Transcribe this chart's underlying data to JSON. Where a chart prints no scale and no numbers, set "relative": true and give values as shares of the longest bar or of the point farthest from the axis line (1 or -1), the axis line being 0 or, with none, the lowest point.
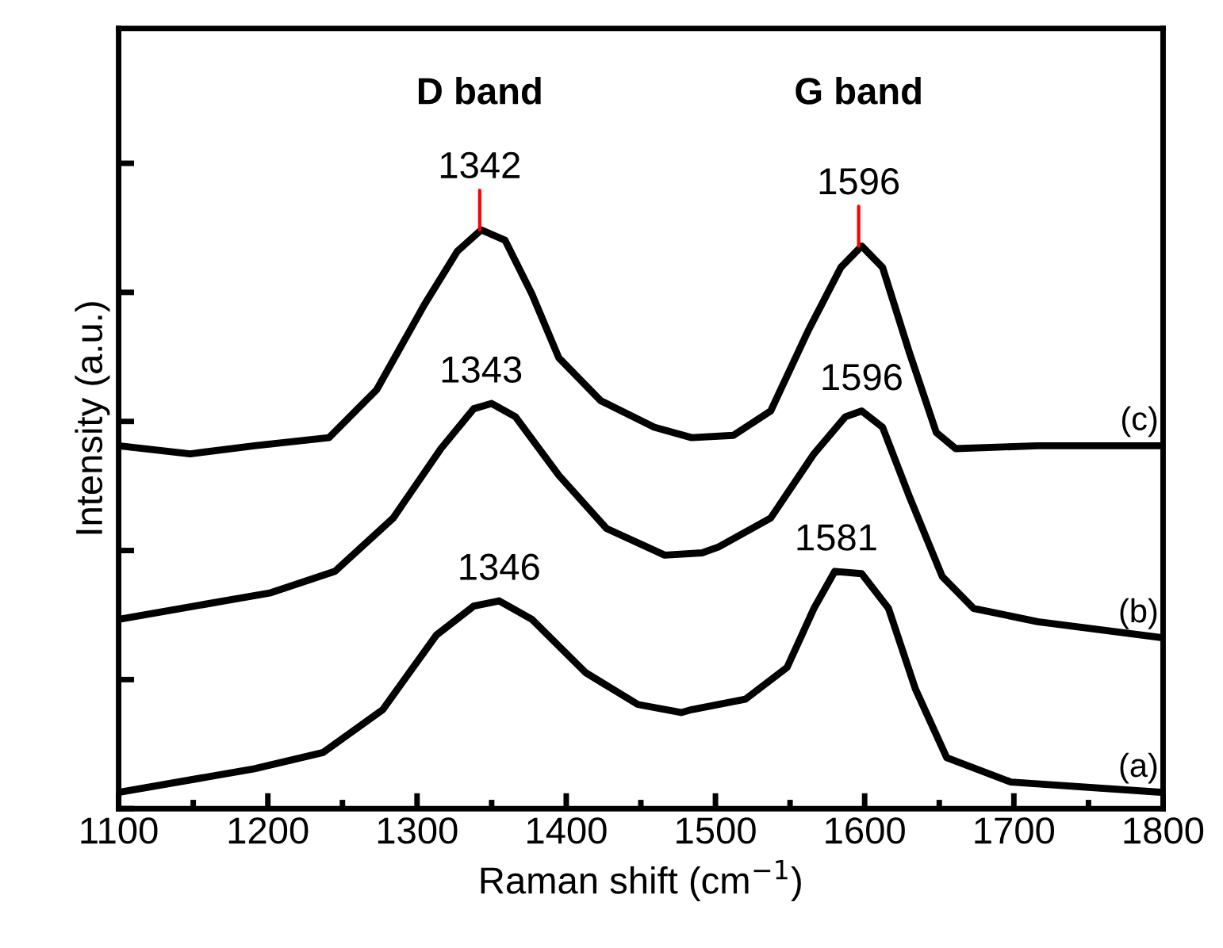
{
  "chart_data": {
    "type": "line",
    "xlabel": "Raman shift (cm$^{−1}$)",
    "ylabel": "Intensity (a.u.)",
    "relative": true,
    "xlim": [
      1100,
      1800
    ],
    "xticks": [
      1100,
      1200,
      1300,
      1400,
      1500,
      1600,
      1700,
      1800
    ],
    "tick_labels": "x",
    "grid": false,
    "legend": false,
    "series": [
      {
        "name": "(c)",
        "color": "#000000",
        "x": [
          1100,
          1148,
          1191,
          1241,
          1273,
          1305,
          1327,
          1343,
          1359,
          1377,
          1395,
          1423,
          1459,
          1484,
          1512,
          1537,
          1562,
          1584,
          1598,
          1612,
          1630,
          1648,
          1661,
          1716,
          1800
        ],
        "values": [
          0.627,
          0.613,
          0.627,
          0.641,
          0.724,
          0.871,
          0.963,
          1.0,
          0.982,
          0.889,
          0.779,
          0.705,
          0.659,
          0.641,
          0.645,
          0.687,
          0.825,
          0.935,
          0.972,
          0.935,
          0.788,
          0.65,
          0.622,
          0.627,
          0.627
        ]
      },
      {
        "name": "(b)",
        "color": "#000000",
        "x": [
          1100,
          1202,
          1245,
          1284,
          1316,
          1338,
          1350,
          1366,
          1395,
          1427,
          1466,
          1491,
          1502,
          1537,
          1566,
          1587,
          1598,
          1612,
          1630,
          1652,
          1673,
          1716,
          1800
        ],
        "values": [
          0.327,
          0.373,
          0.41,
          0.502,
          0.622,
          0.691,
          0.7,
          0.677,
          0.576,
          0.484,
          0.438,
          0.442,
          0.452,
          0.502,
          0.613,
          0.677,
          0.687,
          0.659,
          0.539,
          0.401,
          0.346,
          0.323,
          0.295
        ]
      },
      {
        "name": "(a)",
        "color": "#000000",
        "x": [
          1100,
          1191,
          1237,
          1277,
          1313,
          1338,
          1355,
          1377,
          1413,
          1448,
          1477,
          1484,
          1520,
          1548,
          1566,
          1580,
          1598,
          1616,
          1634,
          1655,
          1698,
          1800
        ],
        "values": [
          0.028,
          0.069,
          0.097,
          0.171,
          0.3,
          0.35,
          0.359,
          0.327,
          0.235,
          0.18,
          0.166,
          0.171,
          0.189,
          0.244,
          0.346,
          0.41,
          0.406,
          0.346,
          0.207,
          0.088,
          0.046,
          0.028
        ]
      }
    ],
    "annotations": [
      "D band",
      "G band",
      {
        "text": "1342",
        "x": 1342,
        "y": 1.0
      },
      {
        "text": "1596",
        "x": 1596,
        "y": 0.972
      },
      {
        "text": "1343",
        "x": 1343,
        "y": 0.7
      },
      {
        "text": "1596",
        "x": 1598,
        "y": 0.687
      },
      {
        "text": "1346",
        "x": 1355,
        "y": 0.359
      },
      {
        "text": "1581",
        "x": 1581,
        "y": 0.41
      }
    ]
  }
}
